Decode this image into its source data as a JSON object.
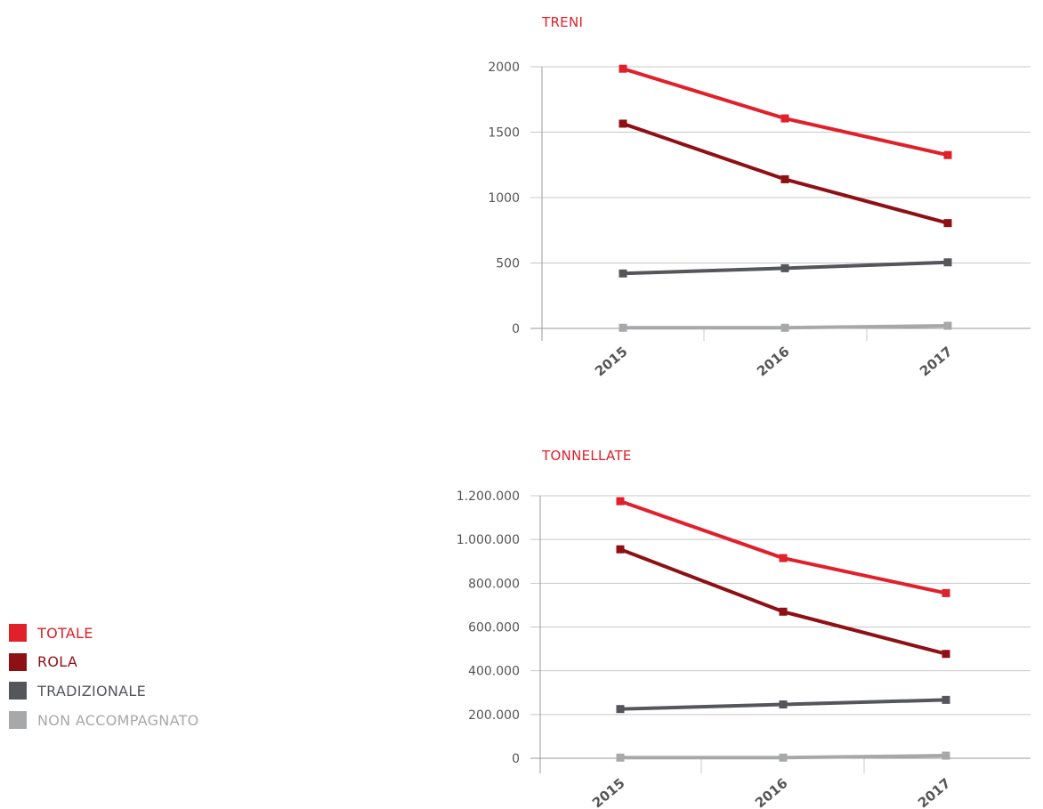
{
  "colors": {
    "TOTALE": "#e0202b",
    "ROLA": "#8e1014",
    "TRADIZIONALE": "#54565a",
    "NON ACCOMPAGNATO": "#a7a8aa",
    "grid": "#c8c8c8",
    "axis": "#9a9a9a",
    "tick_text": "#555555"
  },
  "legend": [
    {
      "label": "TOTALE",
      "color": "#e0202b"
    },
    {
      "label": "ROLA",
      "color": "#8e1014"
    },
    {
      "label": "TRADIZIONALE",
      "color": "#54565a"
    },
    {
      "label": "NON ACCOMPAGNATO",
      "color": "#a7a8aa"
    }
  ],
  "chart_data": [
    {
      "type": "line",
      "title": "TRENI",
      "categories": [
        "2015",
        "2016",
        "2017"
      ],
      "yticks": [
        0,
        500,
        1000,
        1500,
        2000
      ],
      "ytick_labels": [
        "0",
        "500",
        "1000",
        "1500",
        "2000"
      ],
      "ylim": [
        0,
        2000
      ],
      "grid": true,
      "series": [
        {
          "name": "TOTALE",
          "color": "#e0202b",
          "values": [
            1985,
            1605,
            1325
          ]
        },
        {
          "name": "ROLA",
          "color": "#8e1014",
          "values": [
            1565,
            1140,
            805
          ]
        },
        {
          "name": "TRADIZIONALE",
          "color": "#54565a",
          "values": [
            420,
            460,
            505
          ]
        },
        {
          "name": "NON ACCOMPAGNATO",
          "color": "#a7a8aa",
          "values": [
            5,
            5,
            20
          ]
        }
      ]
    },
    {
      "type": "line",
      "title": "TONNELLATE",
      "categories": [
        "2015",
        "2016",
        "2017"
      ],
      "yticks": [
        0,
        200000,
        400000,
        600000,
        800000,
        1000000,
        1200000
      ],
      "ytick_labels": [
        "0",
        "200.000",
        "400.000",
        "600.000",
        "800.000",
        "1.000.000",
        "1.200.000"
      ],
      "ylim": [
        0,
        1200000
      ],
      "grid": true,
      "series": [
        {
          "name": "TOTALE",
          "color": "#e0202b",
          "values": [
            1175000,
            915000,
            755000
          ]
        },
        {
          "name": "ROLA",
          "color": "#8e1014",
          "values": [
            955000,
            670000,
            477000
          ]
        },
        {
          "name": "TRADIZIONALE",
          "color": "#54565a",
          "values": [
            225000,
            246000,
            267000
          ]
        },
        {
          "name": "NON ACCOMPAGNATO",
          "color": "#a7a8aa",
          "values": [
            3000,
            3000,
            12000
          ]
        }
      ]
    }
  ]
}
